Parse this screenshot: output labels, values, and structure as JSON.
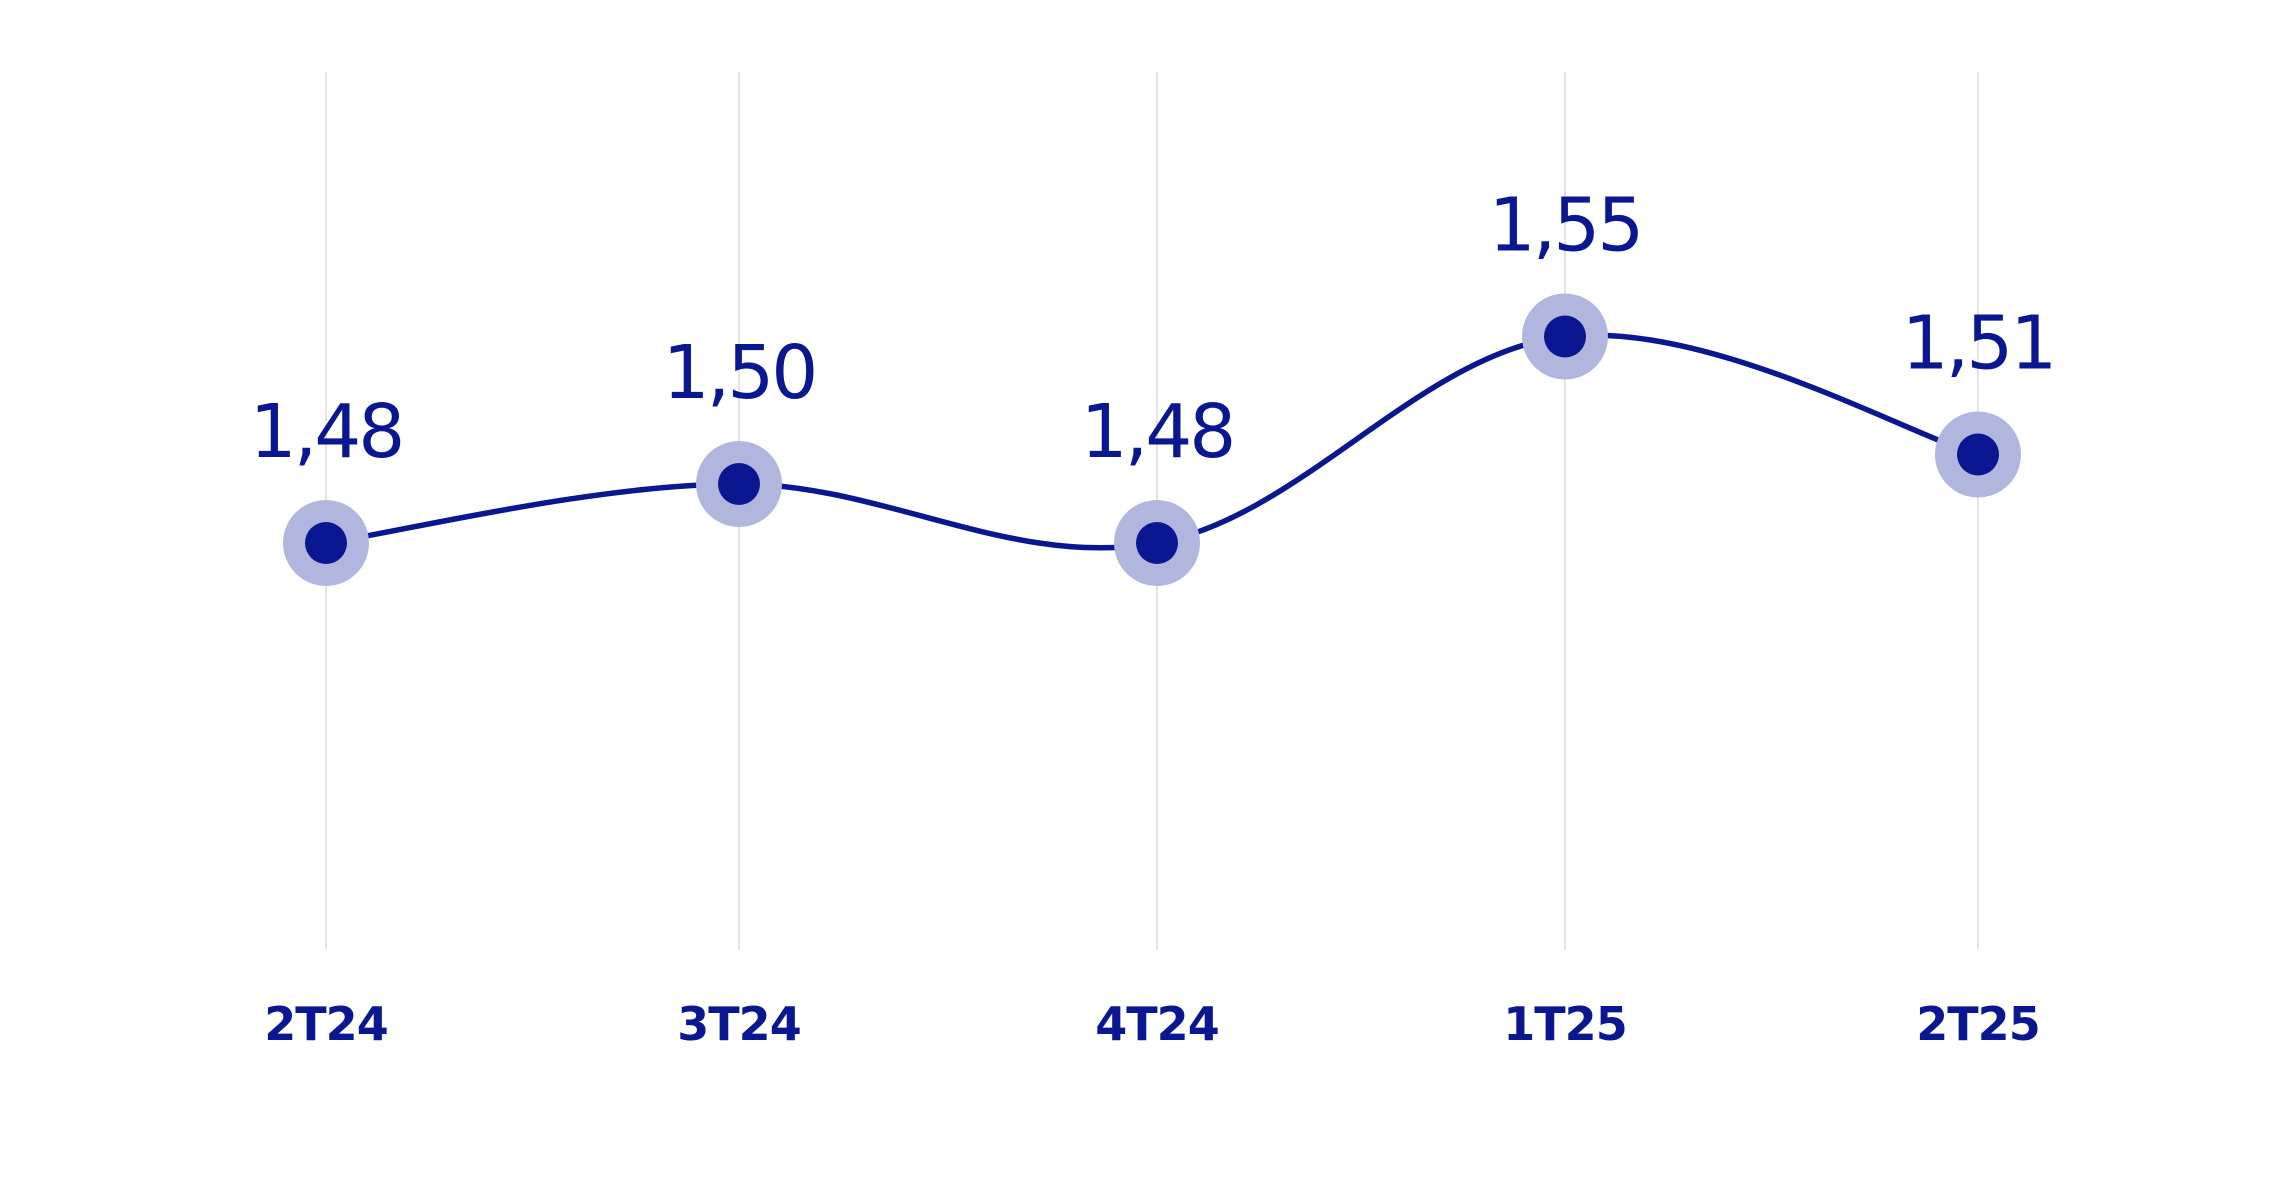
{
  "chart_data": {
    "type": "line",
    "title": "",
    "xlabel": "",
    "ylabel": "",
    "categories": [
      "2T24",
      "3T24",
      "4T24",
      "1T25",
      "2T25"
    ],
    "series": [
      {
        "values": [
          1.48,
          1.5,
          1.48,
          1.55,
          1.51
        ],
        "data_labels": [
          "1,48",
          "1,50",
          "1,48",
          "1,55",
          "1,51"
        ]
      }
    ],
    "ylim": [
      1.36,
      1.6
    ],
    "vertical_gridlines": true,
    "legend": "none",
    "smooth_line": true
  },
  "colors": {
    "series": "#0a1791",
    "halo": "#b1b6df",
    "grid": "#dcdce0",
    "labels": "#0a1791"
  }
}
